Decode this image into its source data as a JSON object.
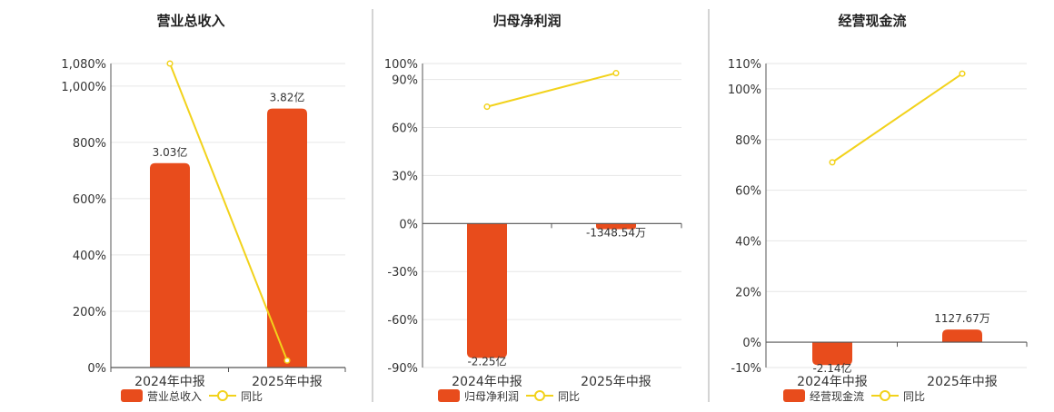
{
  "colors": {
    "bar": "#E84C1C",
    "line": "#F2D21B",
    "grid": "#E6E6E6",
    "axis": "#555555",
    "divider": "#AAAAAA",
    "text": "#333333"
  },
  "legend_line_label": "同比",
  "chart_data": [
    {
      "type": "bar",
      "title": "营业总收入",
      "categories": [
        "2024年中报",
        "2025年中报"
      ],
      "bar_labels": [
        "3.03亿",
        "3.82亿"
      ],
      "bar_values_pct": [
        726,
        920
      ],
      "line_values_pct": [
        1080,
        25
      ],
      "y_ticks": [
        "0%",
        "200%",
        "400%",
        "600%",
        "800%",
        "1,000%",
        "1,080%"
      ],
      "y_tick_values": [
        0,
        200,
        400,
        600,
        800,
        1000,
        1080
      ],
      "ylim": [
        0,
        1080
      ],
      "legend_bar": "营业总收入",
      "legend_line": "同比"
    },
    {
      "type": "bar",
      "title": "归母净利润",
      "categories": [
        "2024年中报",
        "2025年中报"
      ],
      "bar_labels": [
        "-2.25亿",
        "-1348.54万"
      ],
      "bar_values_pct": [
        -84,
        -3.5
      ],
      "line_values_pct": [
        73,
        94
      ],
      "y_ticks": [
        "-90%",
        "-60%",
        "-30%",
        "0%",
        "30%",
        "60%",
        "90%",
        "100%"
      ],
      "y_tick_values": [
        -90,
        -60,
        -30,
        0,
        30,
        60,
        90,
        100
      ],
      "ylim": [
        -90,
        100
      ],
      "legend_bar": "归母净利润",
      "legend_line": "同比"
    },
    {
      "type": "bar",
      "title": "经营现金流",
      "categories": [
        "2024年中报",
        "2025年中报"
      ],
      "bar_labels": [
        "-2.14亿",
        "1127.67万"
      ],
      "bar_values_pct": [
        -9,
        5
      ],
      "line_values_pct": [
        71,
        106
      ],
      "y_ticks": [
        "-10%",
        "0%",
        "20%",
        "40%",
        "60%",
        "80%",
        "100%",
        "110%"
      ],
      "y_tick_values": [
        -10,
        0,
        20,
        40,
        60,
        80,
        100,
        110
      ],
      "ylim": [
        -10,
        110
      ],
      "legend_bar": "经营现金流",
      "legend_line": "同比"
    }
  ]
}
